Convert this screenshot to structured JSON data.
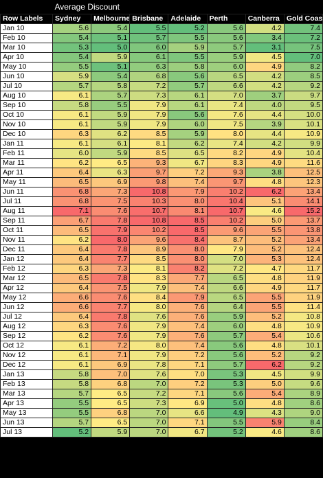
{
  "title": "Average Discount",
  "header": {
    "row_label": "Row Labels",
    "columns": [
      "Sydney",
      "Melbourne",
      "Brisbane",
      "Adelaide",
      "Perth",
      "Canberra",
      "Gold Coast"
    ]
  },
  "rows": [
    {
      "label": "Jan 10",
      "cells": [
        "5.6",
        "5.4",
        "5.5",
        "5.2",
        "5.6",
        "4.2",
        "7.4"
      ]
    },
    {
      "label": "Feb 10",
      "cells": [
        "5.4",
        "5.1",
        "5.7",
        "5.5",
        "5.6",
        "3.4",
        "7.2"
      ]
    },
    {
      "label": "Mar 10",
      "cells": [
        "5.3",
        "5.0",
        "6.0",
        "5.9",
        "5.7",
        "3.1",
        "7.5"
      ]
    },
    {
      "label": "Apr 10",
      "cells": [
        "5.4",
        "5.9",
        "6.1",
        "5.5",
        "5.9",
        "4.5",
        "7.0"
      ]
    },
    {
      "label": "May 10",
      "cells": [
        "5.5",
        "5.1",
        "6.3",
        "5.8",
        "6.0",
        "4.9",
        "8.2"
      ]
    },
    {
      "label": "Jun 10",
      "cells": [
        "5.9",
        "5.4",
        "6.8",
        "5.6",
        "6.5",
        "4.2",
        "8.5"
      ]
    },
    {
      "label": "Jul 10",
      "cells": [
        "5.7",
        "5.8",
        "7.2",
        "5.7",
        "6.6",
        "4.2",
        "9.2"
      ]
    },
    {
      "label": "Aug 10",
      "cells": [
        "6.1",
        "5.7",
        "7.3",
        "6.1",
        "7.0",
        "3.7",
        "9.7"
      ]
    },
    {
      "label": "Sep 10",
      "cells": [
        "5.8",
        "5.5",
        "7.9",
        "6.1",
        "7.4",
        "4.0",
        "9.5"
      ]
    },
    {
      "label": "Oct 10",
      "cells": [
        "6.1",
        "5.9",
        "7.9",
        "5.6",
        "7.6",
        "4.4",
        "10.0"
      ]
    },
    {
      "label": "Nov 10",
      "cells": [
        "6.1",
        "5.9",
        "7.9",
        "6.0",
        "7.5",
        "3.9",
        "10.1"
      ]
    },
    {
      "label": "Dec 10",
      "cells": [
        "6.3",
        "6.2",
        "8.5",
        "5.9",
        "8.0",
        "4.4",
        "10.9"
      ]
    },
    {
      "label": "Jan 11",
      "cells": [
        "6.1",
        "6.1",
        "8.1",
        "6.2",
        "7.4",
        "4.2",
        "9.9"
      ]
    },
    {
      "label": "Feb 11",
      "cells": [
        "6.0",
        "5.9",
        "8.5",
        "6.5",
        "8.2",
        "4.9",
        "10.4"
      ]
    },
    {
      "label": "Mar 11",
      "cells": [
        "6.2",
        "6.5",
        "9.3",
        "6.7",
        "8.3",
        "4.9",
        "11.6"
      ]
    },
    {
      "label": "Apr 11",
      "cells": [
        "6.4",
        "6.3",
        "9.7",
        "7.2",
        "9.3",
        "3.8",
        "12.5"
      ]
    },
    {
      "label": "May 11",
      "cells": [
        "6.5",
        "6.9",
        "9.8",
        "7.4",
        "9.7",
        "4.8",
        "12.3"
      ]
    },
    {
      "label": "Jun 11",
      "cells": [
        "6.8",
        "7.3",
        "10.8",
        "7.9",
        "10.2",
        "6.2",
        "13.4"
      ]
    },
    {
      "label": "Jul 11",
      "cells": [
        "6.8",
        "7.5",
        "10.3",
        "8.0",
        "10.4",
        "5.1",
        "14.1"
      ]
    },
    {
      "label": "Aug 11",
      "cells": [
        "7.1",
        "7.6",
        "10.7",
        "8.1",
        "10.7",
        "4.6",
        "15.2"
      ]
    },
    {
      "label": "Sep 11",
      "cells": [
        "6.7",
        "7.8",
        "10.8",
        "8.5",
        "10.2",
        "5.0",
        "13.7"
      ]
    },
    {
      "label": "Oct 11",
      "cells": [
        "6.5",
        "7.9",
        "10.2",
        "8.5",
        "9.6",
        "5.5",
        "13.8"
      ]
    },
    {
      "label": "Nov 11",
      "cells": [
        "6.2",
        "8.0",
        "9.6",
        "8.4",
        "8.7",
        "5.2",
        "13.4"
      ]
    },
    {
      "label": "Dec 11",
      "cells": [
        "6.4",
        "7.8",
        "8.9",
        "8.0",
        "7.9",
        "5.2",
        "12.4"
      ]
    },
    {
      "label": "Jan 12",
      "cells": [
        "6.4",
        "7.7",
        "8.5",
        "8.0",
        "7.0",
        "5.3",
        "12.4"
      ]
    },
    {
      "label": "Feb 12",
      "cells": [
        "6.3",
        "7.3",
        "8.1",
        "8.2",
        "7.2",
        "4.7",
        "11.7"
      ]
    },
    {
      "label": "Mar 12",
      "cells": [
        "6.5",
        "7.8",
        "8.3",
        "7.7",
        "6.5",
        "4.8",
        "11.9"
      ]
    },
    {
      "label": "Apr 12",
      "cells": [
        "6.4",
        "7.5",
        "7.9",
        "7.4",
        "6.6",
        "4.9",
        "11.7"
      ]
    },
    {
      "label": "May 12",
      "cells": [
        "6.6",
        "7.6",
        "8.4",
        "7.9",
        "6.5",
        "5.5",
        "11.9"
      ]
    },
    {
      "label": "Jun 12",
      "cells": [
        "6.6",
        "7.7",
        "8.0",
        "7.6",
        "6.4",
        "5.5",
        "11.4"
      ]
    },
    {
      "label": "Jul 12",
      "cells": [
        "6.4",
        "7.8",
        "7.6",
        "7.6",
        "5.9",
        "5.2",
        "10.8"
      ]
    },
    {
      "label": "Aug 12",
      "cells": [
        "6.3",
        "7.6",
        "7.9",
        "7.4",
        "6.0",
        "4.8",
        "10.9"
      ]
    },
    {
      "label": "Sep 12",
      "cells": [
        "6.2",
        "7.6",
        "7.9",
        "7.6",
        "5.7",
        "5.4",
        "10.6"
      ]
    },
    {
      "label": "Oct 12",
      "cells": [
        "6.1",
        "7.2",
        "8.0",
        "7.4",
        "5.6",
        "4.8",
        "10.1"
      ]
    },
    {
      "label": "Nov 12",
      "cells": [
        "6.1",
        "7.1",
        "7.9",
        "7.2",
        "5.6",
        "5.2",
        "9.2"
      ]
    },
    {
      "label": "Dec 12",
      "cells": [
        "6.1",
        "6.9",
        "7.8",
        "7.1",
        "5.7",
        "6.2",
        "9.2"
      ]
    },
    {
      "label": "Jan 13",
      "cells": [
        "5.8",
        "7.0",
        "7.6",
        "7.0",
        "5.3",
        "4.5",
        "9.9"
      ]
    },
    {
      "label": "Feb 13",
      "cells": [
        "5.8",
        "6.8",
        "7.0",
        "7.2",
        "5.3",
        "5.0",
        "9.6"
      ]
    },
    {
      "label": "Mar 13",
      "cells": [
        "5.7",
        "6.5",
        "7.2",
        "7.1",
        "5.6",
        "5.4",
        "8.9"
      ]
    },
    {
      "label": "Apr 13",
      "cells": [
        "5.5",
        "6.5",
        "7.3",
        "6.9",
        "5.0",
        "4.8",
        "8.6"
      ]
    },
    {
      "label": "May 13",
      "cells": [
        "5.5",
        "6.8",
        "7.0",
        "6.6",
        "4.9",
        "4.3",
        "9.0"
      ]
    },
    {
      "label": "Jun 13",
      "cells": [
        "5.7",
        "6.5",
        "7.0",
        "7.1",
        "5.5",
        "5.9",
        "8.4"
      ]
    },
    {
      "label": "Jul 13",
      "cells": [
        "5.2",
        "5.9",
        "7.0",
        "6.7",
        "5.2",
        "4.6",
        "8.6"
      ]
    }
  ]
}
